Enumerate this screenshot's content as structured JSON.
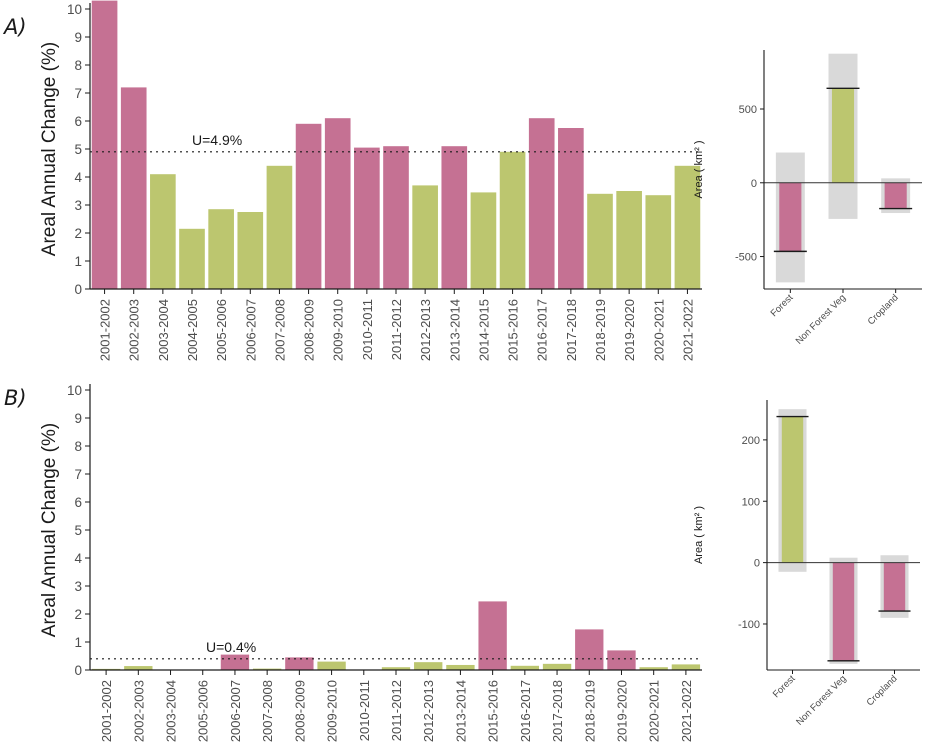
{
  "colors": {
    "loss": "#c57193",
    "gain": "#bcc66f",
    "error": "#d9d9d9",
    "axis": "#1a1a1a"
  },
  "chart_data": [
    {
      "panel": "A)",
      "type": "bar",
      "ylabel": "Areal Annual Change (%)",
      "ylim": [
        0,
        10
      ],
      "yticks": [
        "0",
        "1",
        "2",
        "3",
        "4",
        "5",
        "6",
        "7",
        "8",
        "9",
        "10"
      ],
      "categories": [
        "2001-2002",
        "2002-2003",
        "2003-2004",
        "2004-2005",
        "2005-2006",
        "2006-2007",
        "2007-2008",
        "2008-2009",
        "2009-2010",
        "2010-2011",
        "2011-2012",
        "2012-2013",
        "2013-2014",
        "2014-2015",
        "2015-2016",
        "2016-2017",
        "2017-2018",
        "2018-2019",
        "2019-2020",
        "2020-2021",
        "2021-2022"
      ],
      "values": [
        10.3,
        7.2,
        4.1,
        2.15,
        2.85,
        2.75,
        4.4,
        5.9,
        6.1,
        5.05,
        5.1,
        3.7,
        5.1,
        3.45,
        4.9,
        6.1,
        5.75,
        3.4,
        3.5,
        3.35,
        4.4
      ],
      "colors": [
        "loss",
        "loss",
        "gain",
        "gain",
        "gain",
        "gain",
        "gain",
        "loss",
        "loss",
        "loss",
        "loss",
        "gain",
        "loss",
        "gain",
        "gain",
        "loss",
        "loss",
        "gain",
        "gain",
        "gain",
        "gain"
      ],
      "threshold": 4.9,
      "threshold_label": "U=4.9%"
    },
    {
      "panel": "B)",
      "type": "bar",
      "ylabel": "Areal Annual Change (%)",
      "ylim": [
        0,
        10
      ],
      "yticks": [
        "0",
        "1",
        "2",
        "3",
        "4",
        "5",
        "6",
        "7",
        "8",
        "9",
        "10"
      ],
      "categories": [
        "2001-2002",
        "2002-2003",
        "2003-2004",
        "2005-2006",
        "2006-2007",
        "2007-2008",
        "2008-2009",
        "2009-2010",
        "2010-2011",
        "2011-2012",
        "2012-2013",
        "2013-2014",
        "2015-2016",
        "2016-2017",
        "2017-2018",
        "2018-2019",
        "2019-2020",
        "2020-2021",
        "2021-2022"
      ],
      "values": [
        0.04,
        0.14,
        0,
        0,
        0.55,
        0.05,
        0.45,
        0.3,
        0,
        0.1,
        0.28,
        0.18,
        2.45,
        0.15,
        0.22,
        1.45,
        0.7,
        0.1,
        0.2
      ],
      "colors": [
        "gain",
        "gain",
        "gain",
        "gain",
        "loss",
        "gain",
        "loss",
        "gain",
        "gain",
        "gain",
        "gain",
        "gain",
        "loss",
        "gain",
        "gain",
        "loss",
        "loss",
        "gain",
        "gain"
      ],
      "threshold": 0.4,
      "threshold_label": "U=0.4%"
    },
    {
      "panel": "A-inset",
      "type": "bar",
      "ylabel": "Area ( km² )",
      "ylim": [
        -720,
        900
      ],
      "yticks": [
        -500,
        0,
        500
      ],
      "categories": [
        "Forest",
        "Non Forest Veg",
        "Cropland"
      ],
      "values": [
        -465,
        640,
        -175
      ],
      "error_low": [
        -675,
        -245,
        -205
      ],
      "error_high": [
        205,
        875,
        30
      ],
      "colors": [
        "loss",
        "gain",
        "loss"
      ]
    },
    {
      "panel": "B-inset",
      "type": "bar",
      "ylabel": "Area ( km² )",
      "ylim": [
        -175,
        265
      ],
      "yticks": [
        -100,
        0,
        100,
        200
      ],
      "categories": [
        "Forest",
        "Non Forest Veg",
        "Cropland"
      ],
      "values": [
        238,
        -160,
        -79
      ],
      "error_low": [
        -15,
        -165,
        -90
      ],
      "error_high": [
        250,
        8,
        12
      ],
      "colors": [
        "gain",
        "loss",
        "loss"
      ]
    }
  ]
}
